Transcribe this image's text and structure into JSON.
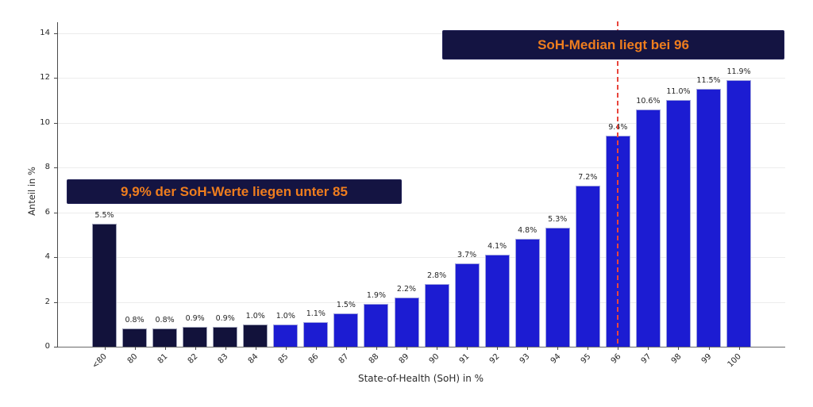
{
  "chart_data": {
    "type": "bar",
    "title": "",
    "xlabel": "State-of-Health (SoH) in %",
    "ylabel": "Anteil in %",
    "categories": [
      "<80",
      "80",
      "81",
      "82",
      "83",
      "84",
      "85",
      "86",
      "87",
      "88",
      "89",
      "90",
      "91",
      "92",
      "93",
      "94",
      "95",
      "96",
      "97",
      "98",
      "99",
      "100"
    ],
    "values": [
      5.5,
      0.8,
      0.8,
      0.9,
      0.9,
      1.0,
      1.0,
      1.1,
      1.5,
      1.9,
      2.2,
      2.8,
      3.7,
      4.1,
      4.8,
      5.3,
      7.2,
      9.4,
      10.6,
      11.0,
      11.5,
      11.9
    ],
    "bar_labels": [
      "5.5%",
      "0.8%",
      "0.8%",
      "0.9%",
      "0.9%",
      "1.0%",
      "1.0%",
      "1.1%",
      "1.5%",
      "1.9%",
      "2.2%",
      "2.8%",
      "3.7%",
      "4.1%",
      "4.8%",
      "5.3%",
      "7.2%",
      "9.4%",
      "10.6%",
      "11.0%",
      "11.5%",
      "11.9%"
    ],
    "yticks": [
      0,
      2,
      4,
      6,
      8,
      10,
      12,
      14
    ],
    "ylim": [
      0,
      14.5
    ],
    "grid": true,
    "legend_position": "none",
    "bar_color_default": "#1C1CD2",
    "bar_color_low": "#12123B",
    "low_group_last_category": "84",
    "median_line": {
      "category": "96",
      "color": "#E8453C",
      "style": "dashed"
    },
    "annotations": [
      {
        "id": "under85",
        "text": "9,9% der SoH-Werte liegen unter 85",
        "text_color": "#EE7D1E",
        "bg_color": "#141442"
      },
      {
        "id": "median",
        "text": "SoH-Median liegt bei 96",
        "text_color": "#EE7D1E",
        "bg_color": "#141442"
      }
    ]
  }
}
